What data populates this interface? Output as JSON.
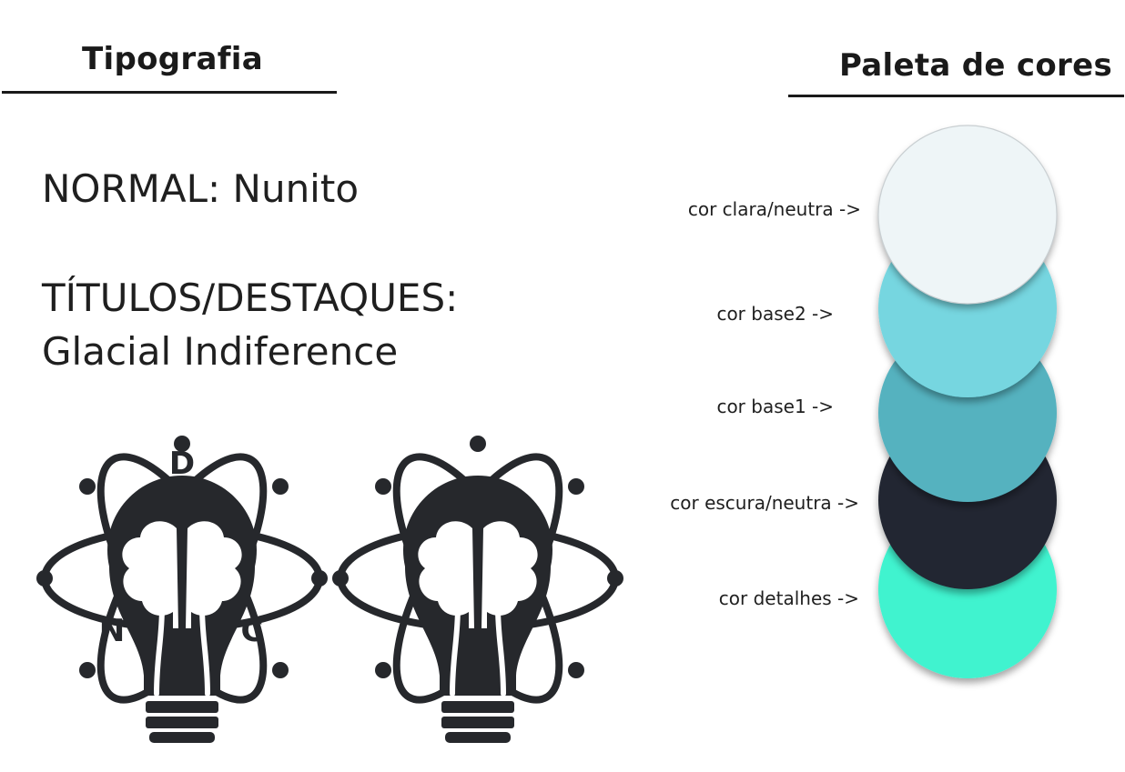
{
  "typography": {
    "heading": "Tipografia",
    "normal_line": "NORMAL: Nunito",
    "titles_line1": "TÍTULOS/DESTAQUES:",
    "titles_line2": "Glacial Indiference"
  },
  "palette": {
    "heading": "Paleta de cores",
    "swatches": [
      {
        "label": "cor clara/neutra ->",
        "color": "#eef5f7"
      },
      {
        "label": "cor base2 ->",
        "color": "#76d6e0"
      },
      {
        "label": "cor base1 ->",
        "color": "#55b2bf"
      },
      {
        "label": "cor escura/neutra ->",
        "color": "#222831"
      },
      {
        "label": "cor detalhes ->",
        "color": "#3ff3cf"
      }
    ]
  },
  "logos": {
    "variant_with_letters": {
      "letters": [
        "D",
        "N",
        "C"
      ],
      "icon": "lightbulb-brain-atom-icon"
    },
    "variant_plain": {
      "icon": "lightbulb-brain-atom-icon"
    },
    "ink_color": "#26282c"
  }
}
